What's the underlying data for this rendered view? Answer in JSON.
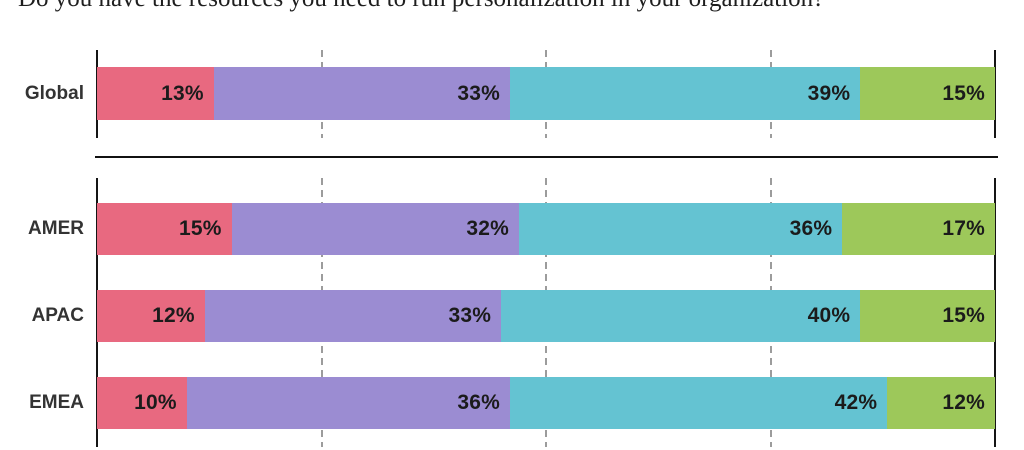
{
  "title": "Do you have the resources you need to run personalization in your organization?",
  "colors": {
    "segment_pink": "#E86980",
    "segment_purple": "#9B8CD2",
    "segment_teal": "#64C3D2",
    "segment_green": "#9DC85A",
    "axis": "#151515",
    "gridline": "#9C9C9C",
    "value_label_text": "#1B1B1B",
    "row_label_text": "#333333",
    "background": "#FFFFFF"
  },
  "chart_data": {
    "type": "bar",
    "orientation": "horizontal",
    "stacked": true,
    "unit": "%",
    "xlim": [
      0,
      100
    ],
    "gridlines_percent": [
      0,
      25,
      50,
      75,
      100
    ],
    "grid_style": "dashed-vertical, solid axis at 0 and 100",
    "legend": "none visible (cropped)",
    "title": "Do you have the resources you need to run personalization in your organization?",
    "series_colors": [
      "#E86980",
      "#9B8CD2",
      "#64C3D2",
      "#9DC85A"
    ],
    "value_label_format": "{v}%",
    "groups": [
      {
        "name": "global",
        "categories": [
          "Global"
        ],
        "rows": [
          [
            13,
            33,
            39,
            15
          ]
        ]
      },
      {
        "name": "regions",
        "categories": [
          "AMER",
          "APAC",
          "EMEA"
        ],
        "rows": [
          [
            15,
            32,
            36,
            17
          ],
          [
            12,
            33,
            40,
            15
          ],
          [
            10,
            36,
            42,
            12
          ]
        ]
      }
    ]
  }
}
